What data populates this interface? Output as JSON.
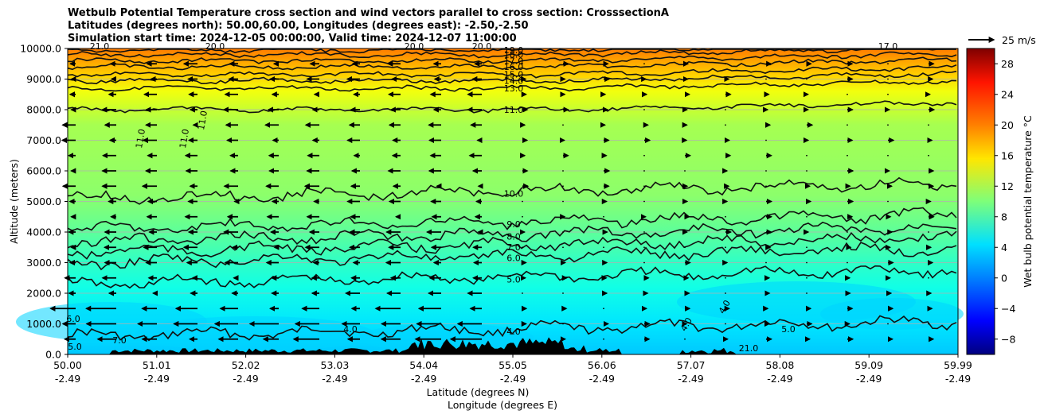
{
  "chart_data": {
    "type": "contour",
    "title_lines": [
      "Wetbulb Potential Temperature cross section and wind vectors parallel to cross section: CrosssectionA",
      "Latitudes (degrees north): 50.00,60.00, Longitudes (degrees east): -2.50,-2.50",
      "Simulation start time: 2024-12-05 00:00:00, Valid time: 2024-12-07 11:00:00"
    ],
    "ylabel": "Altitude (meters)",
    "xlabel_lat": "Latitude (degrees N)",
    "xlabel_lon": "Longitude (degrees E)",
    "ylim": [
      0,
      10000
    ],
    "y_ticks": [
      "0.0",
      "1000.0",
      "2000.0",
      "3000.0",
      "4000.0",
      "5000.0",
      "6000.0",
      "7000.0",
      "8000.0",
      "9000.0",
      "10000.0"
    ],
    "x_ticks_lat": [
      "50.00",
      "51.01",
      "52.02",
      "53.03",
      "54.04",
      "55.05",
      "56.06",
      "57.07",
      "58.08",
      "59.09",
      "59.99"
    ],
    "x_ticks_lon": [
      "-2.49",
      "-2.49",
      "-2.49",
      "-2.49",
      "-2.49",
      "-2.49",
      "-2.49",
      "-2.49",
      "-2.49",
      "-2.49",
      "-2.49"
    ],
    "colorbar": {
      "label": "Wet bulb potential temperature °C",
      "ticks": [
        "−8",
        "−4",
        "0",
        "4",
        "8",
        "12",
        "16",
        "20",
        "24",
        "28"
      ],
      "range": [
        -10,
        30
      ],
      "colormap": "jet"
    },
    "wind_key": "25 m/s",
    "contour_levels": [
      {
        "value": 4.0,
        "altitude": 600
      },
      {
        "value": 5.0,
        "altitude": 2300
      },
      {
        "value": 6.0,
        "altitude": 3000
      },
      {
        "value": 7.0,
        "altitude": 3350
      },
      {
        "value": 8.0,
        "altitude": 3700
      },
      {
        "value": 9.0,
        "altitude": 4100
      },
      {
        "value": 10.0,
        "altitude": 5100
      },
      {
        "value": 11.0,
        "altitude": 8000
      },
      {
        "value": 13.0,
        "altitude": 8700
      },
      {
        "value": 14.0,
        "altitude": 8950
      },
      {
        "value": 15.0,
        "altitude": 9150
      },
      {
        "value": 16.0,
        "altitude": 9400
      },
      {
        "value": 17.0,
        "altitude": 9600
      },
      {
        "value": 18.0,
        "altitude": 9800
      },
      {
        "value": 19.0,
        "altitude": 9950
      }
    ],
    "extra_labels": [
      "11.0",
      "11.0",
      "11.0",
      "4.0",
      "4.0",
      "4.0",
      "5.0",
      "6.0",
      "7.0",
      "5.0",
      "21.0",
      "21.0",
      "20.0",
      "20.0",
      "20.0",
      "17.0"
    ],
    "grid": "horizontal"
  }
}
